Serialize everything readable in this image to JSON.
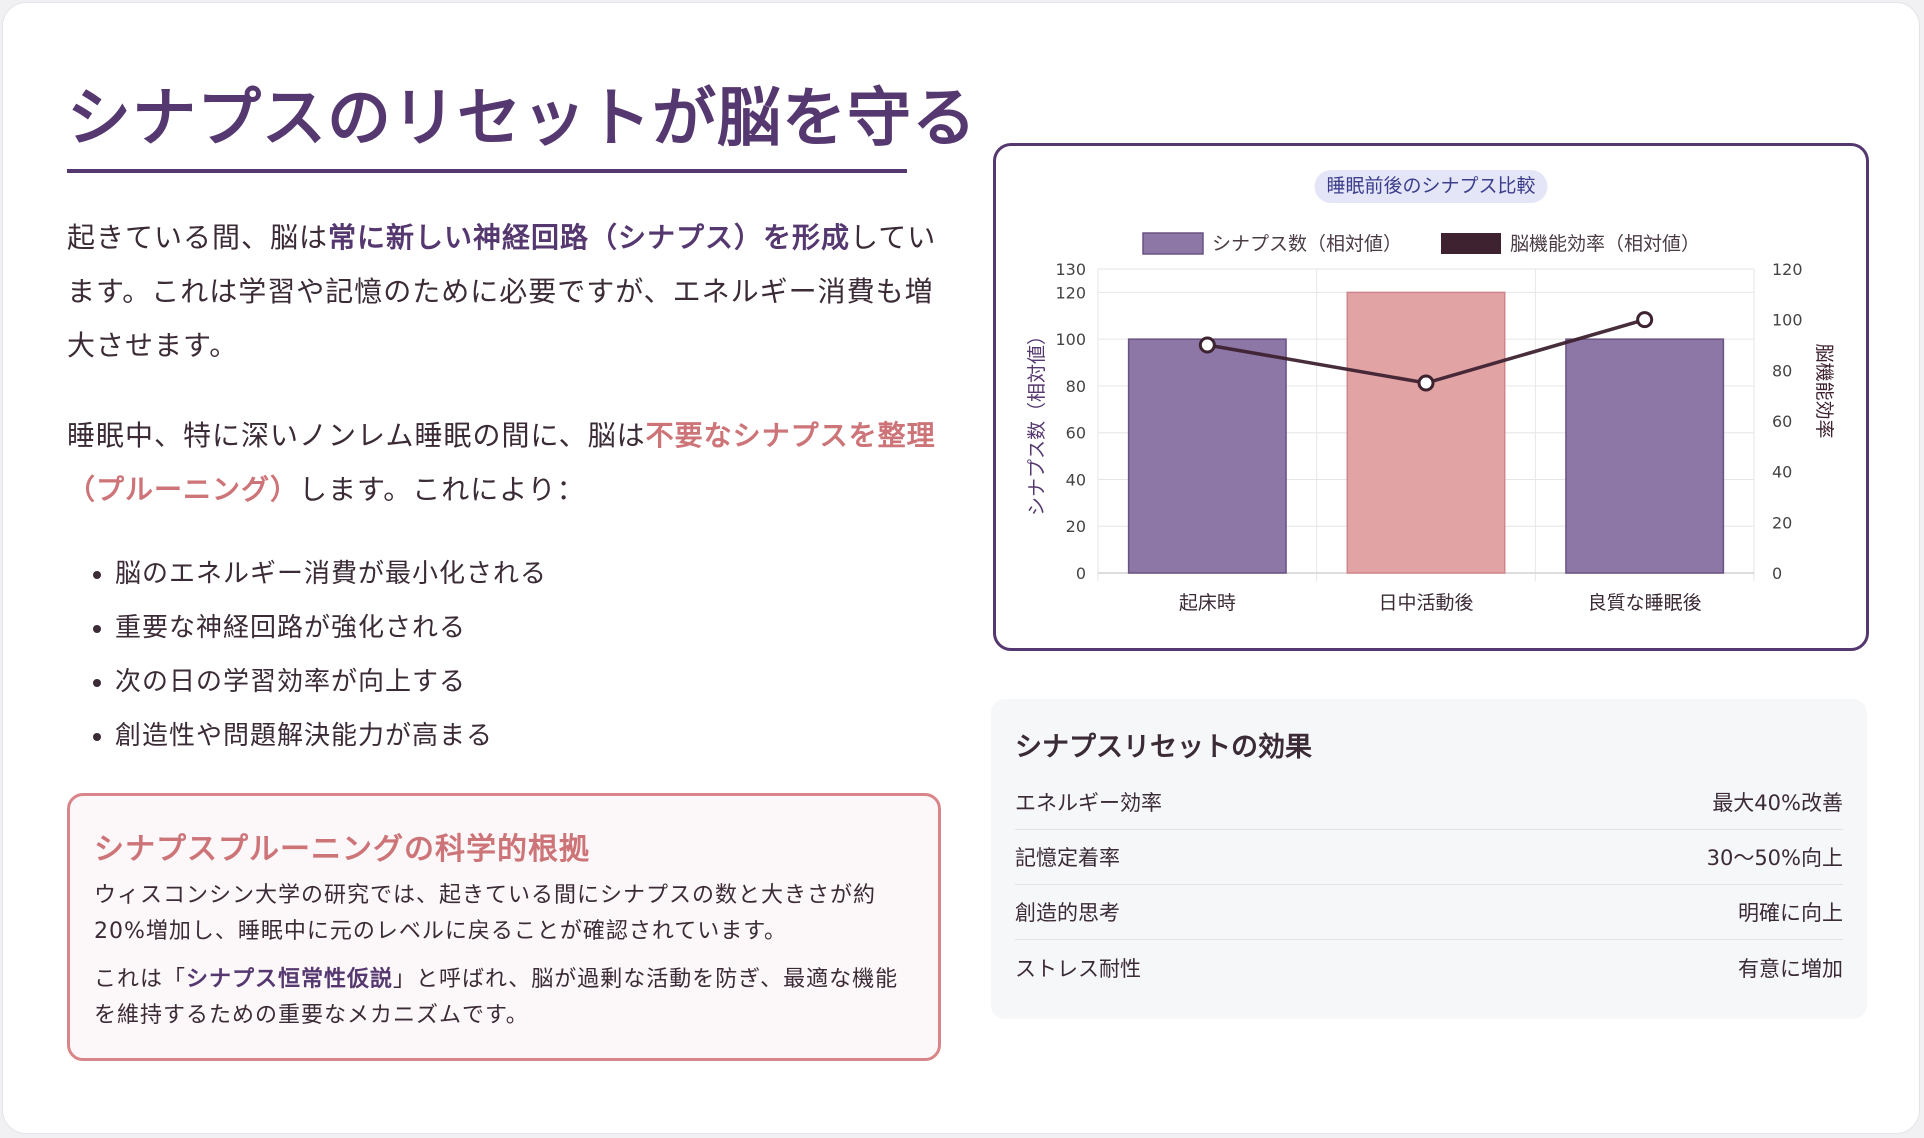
{
  "article": {
    "title": "シナプスのリセットが脳を守る",
    "para1": {
      "pre": "起きている間、脳は",
      "highlight": "常に新しい神経回路（シナプス）を形成",
      "post": "しています。これは学習や記憶のために必要ですが、エネルギー消費も増大させます。"
    },
    "para2": {
      "pre": "睡眠中、特に深いノンレム睡眠の間に、脳は",
      "highlight": "不要なシナプスを整理（プルーニング）",
      "post": "します。これにより："
    },
    "benefits": [
      "脳のエネルギー消費が最小化される",
      "重要な神経回路が強化される",
      "次の日の学習効率が向上する",
      "創造性や問題解決能力が高まる"
    ]
  },
  "evidence": {
    "title": "シナプスプルーニングの科学的根拠",
    "p1": "ウィスコンシン大学の研究では、起きている間にシナプスの数と大きさが約20%増加し、睡眠中に元のレベルに戻ることが確認されています。",
    "p2_pre": "これは「",
    "p2_highlight": "シナプス恒常性仮説",
    "p2_post": "」と呼ばれ、脳が過剰な活動を防ぎ、最適な機能を維持するための重要なメカニズムです。"
  },
  "chart_data": {
    "type": "bar",
    "title": "睡眠前後のシナプス比較",
    "categories": [
      "起床時",
      "日中活動後",
      "良質な睡眠後"
    ],
    "series": [
      {
        "name": "シナプス数（相対値）",
        "type": "bar",
        "axis": "left",
        "values": [
          100,
          120,
          100
        ],
        "colors": [
          "#8d77a6",
          "#e2a3a5",
          "#8d77a6"
        ]
      },
      {
        "name": "脳機能効率（相対値）",
        "type": "line",
        "axis": "right",
        "values": [
          90,
          75,
          100
        ],
        "color": "#3e2230"
      }
    ],
    "ylabel": "シナプス数（相対値）",
    "y2label": "脳機能効率",
    "ylim": [
      0,
      130
    ],
    "y2lim": [
      0,
      120
    ],
    "yticks": [
      0,
      20,
      40,
      60,
      80,
      100,
      120,
      130
    ],
    "y2ticks": [
      0,
      20,
      40,
      60,
      80,
      100,
      120
    ],
    "grid": true,
    "legend": "top"
  },
  "effects": {
    "title": "シナプスリセットの効果",
    "rows": [
      {
        "label": "エネルギー効率",
        "value": "最大40%改善"
      },
      {
        "label": "記憶定着率",
        "value": "30〜50%向上"
      },
      {
        "label": "創造的思考",
        "value": "明確に向上"
      },
      {
        "label": "ストレス耐性",
        "value": "有意に増加"
      }
    ]
  },
  "colors": {
    "primary": "#55386f",
    "accent": "#cd7478",
    "text": "#3b2b36"
  }
}
